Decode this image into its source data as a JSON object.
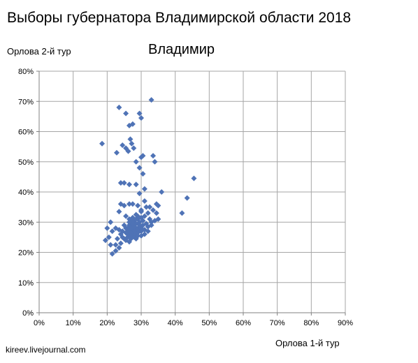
{
  "page": {
    "title": "Выборы губернатора Владимирской области 2018",
    "source": "kireev.livejournal.com"
  },
  "colors": {
    "marker": "#4f73b6",
    "grid": "#a6a6a6",
    "axis": "#808080"
  },
  "chart_data": {
    "type": "scatter",
    "title": "Владимир",
    "xlabel": "Орлова 1-й тур",
    "ylabel": "Орлова 2-й тур",
    "xlim": [
      0,
      0.9
    ],
    "ylim": [
      0,
      0.8
    ],
    "grid": true,
    "legend": "none",
    "x_ticks": [
      "0%",
      "10%",
      "20%",
      "30%",
      "40%",
      "50%",
      "60%",
      "70%",
      "80%",
      "90%"
    ],
    "y_ticks": [
      "0%",
      "10%",
      "20%",
      "30%",
      "40%",
      "50%",
      "60%",
      "70%",
      "80%"
    ],
    "points": [
      [
        0.185,
        0.56
      ],
      [
        0.235,
        0.68
      ],
      [
        0.255,
        0.66
      ],
      [
        0.295,
        0.66
      ],
      [
        0.3,
        0.645
      ],
      [
        0.33,
        0.705
      ],
      [
        0.265,
        0.62
      ],
      [
        0.275,
        0.625
      ],
      [
        0.268,
        0.575
      ],
      [
        0.272,
        0.56
      ],
      [
        0.245,
        0.555
      ],
      [
        0.255,
        0.545
      ],
      [
        0.262,
        0.535
      ],
      [
        0.228,
        0.53
      ],
      [
        0.278,
        0.545
      ],
      [
        0.3,
        0.515
      ],
      [
        0.305,
        0.52
      ],
      [
        0.335,
        0.52
      ],
      [
        0.34,
        0.5
      ],
      [
        0.285,
        0.5
      ],
      [
        0.295,
        0.48
      ],
      [
        0.305,
        0.46
      ],
      [
        0.24,
        0.43
      ],
      [
        0.25,
        0.43
      ],
      [
        0.265,
        0.425
      ],
      [
        0.285,
        0.425
      ],
      [
        0.31,
        0.41
      ],
      [
        0.295,
        0.395
      ],
      [
        0.36,
        0.4
      ],
      [
        0.455,
        0.445
      ],
      [
        0.435,
        0.38
      ],
      [
        0.42,
        0.33
      ],
      [
        0.345,
        0.36
      ],
      [
        0.35,
        0.355
      ],
      [
        0.325,
        0.35
      ],
      [
        0.335,
        0.34
      ],
      [
        0.345,
        0.33
      ],
      [
        0.315,
        0.35
      ],
      [
        0.31,
        0.37
      ],
      [
        0.3,
        0.34
      ],
      [
        0.29,
        0.355
      ],
      [
        0.275,
        0.36
      ],
      [
        0.265,
        0.36
      ],
      [
        0.25,
        0.355
      ],
      [
        0.24,
        0.36
      ],
      [
        0.235,
        0.335
      ],
      [
        0.255,
        0.32
      ],
      [
        0.265,
        0.31
      ],
      [
        0.27,
        0.3
      ],
      [
        0.28,
        0.3
      ],
      [
        0.29,
        0.31
      ],
      [
        0.3,
        0.315
      ],
      [
        0.31,
        0.32
      ],
      [
        0.32,
        0.33
      ],
      [
        0.325,
        0.31
      ],
      [
        0.33,
        0.3
      ],
      [
        0.34,
        0.305
      ],
      [
        0.35,
        0.31
      ],
      [
        0.315,
        0.295
      ],
      [
        0.305,
        0.29
      ],
      [
        0.295,
        0.285
      ],
      [
        0.285,
        0.28
      ],
      [
        0.275,
        0.275
      ],
      [
        0.265,
        0.27
      ],
      [
        0.255,
        0.265
      ],
      [
        0.245,
        0.27
      ],
      [
        0.235,
        0.275
      ],
      [
        0.225,
        0.28
      ],
      [
        0.215,
        0.27
      ],
      [
        0.21,
        0.3
      ],
      [
        0.2,
        0.28
      ],
      [
        0.205,
        0.25
      ],
      [
        0.195,
        0.24
      ],
      [
        0.21,
        0.225
      ],
      [
        0.225,
        0.225
      ],
      [
        0.215,
        0.195
      ],
      [
        0.225,
        0.205
      ],
      [
        0.235,
        0.215
      ],
      [
        0.24,
        0.23
      ],
      [
        0.25,
        0.245
      ],
      [
        0.26,
        0.25
      ],
      [
        0.27,
        0.255
      ],
      [
        0.28,
        0.26
      ],
      [
        0.29,
        0.265
      ],
      [
        0.3,
        0.27
      ],
      [
        0.31,
        0.275
      ],
      [
        0.27,
        0.245
      ],
      [
        0.28,
        0.25
      ],
      [
        0.26,
        0.26
      ],
      [
        0.255,
        0.28
      ],
      [
        0.265,
        0.29
      ],
      [
        0.275,
        0.29
      ],
      [
        0.285,
        0.295
      ],
      [
        0.295,
        0.3
      ],
      [
        0.305,
        0.305
      ],
      [
        0.275,
        0.315
      ],
      [
        0.285,
        0.325
      ],
      [
        0.29,
        0.32
      ],
      [
        0.3,
        0.335
      ],
      [
        0.26,
        0.27
      ],
      [
        0.27,
        0.28
      ],
      [
        0.28,
        0.27
      ],
      [
        0.29,
        0.275
      ],
      [
        0.3,
        0.28
      ],
      [
        0.28,
        0.285
      ],
      [
        0.27,
        0.265
      ],
      [
        0.26,
        0.28
      ],
      [
        0.25,
        0.29
      ],
      [
        0.245,
        0.25
      ],
      [
        0.255,
        0.24
      ],
      [
        0.265,
        0.235
      ],
      [
        0.285,
        0.245
      ],
      [
        0.29,
        0.255
      ],
      [
        0.3,
        0.255
      ],
      [
        0.31,
        0.26
      ],
      [
        0.32,
        0.27
      ],
      [
        0.32,
        0.285
      ],
      [
        0.33,
        0.29
      ],
      [
        0.275,
        0.305
      ],
      [
        0.295,
        0.29
      ],
      [
        0.275,
        0.295
      ],
      [
        0.265,
        0.3
      ],
      [
        0.285,
        0.31
      ],
      [
        0.24,
        0.26
      ],
      [
        0.23,
        0.245
      ]
    ]
  }
}
